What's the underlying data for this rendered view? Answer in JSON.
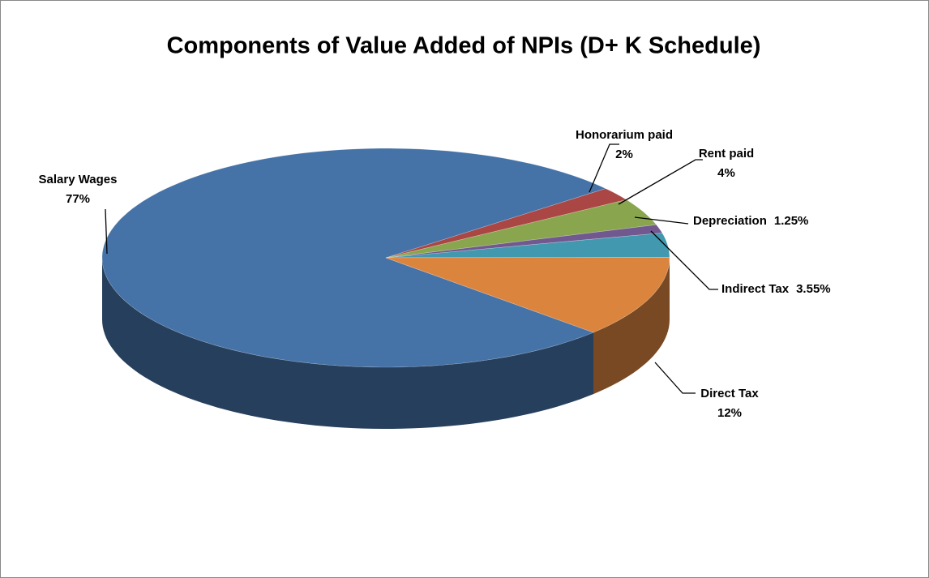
{
  "chart_data": {
    "type": "pie",
    "title": "Components of  Value Added of NPIs (D+ K Schedule)",
    "categories": [
      "Salary Wages",
      "Honorarium paid",
      "Rent paid",
      "Depreciation",
      "Indirect Tax",
      "Direct Tax"
    ],
    "values": [
      77,
      2,
      4,
      1.25,
      3.55,
      12
    ],
    "value_labels": [
      "77%",
      "2%",
      "4%",
      "1.25%",
      "3.55%",
      "12%"
    ],
    "colors": [
      "#4572a7",
      "#aa4643",
      "#89a54e",
      "#71588f",
      "#4198af",
      "#db843d"
    ]
  }
}
